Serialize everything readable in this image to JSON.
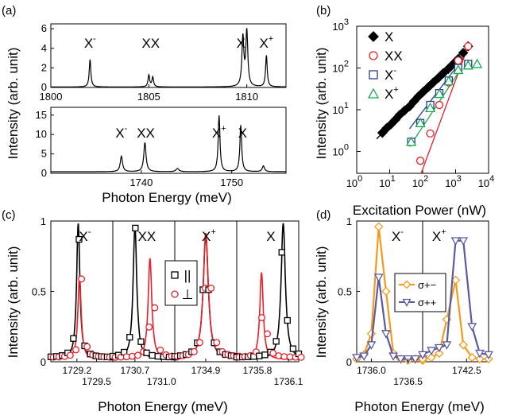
{
  "panels": {
    "a": {
      "label": "(a)"
    },
    "b": {
      "label": "(b)"
    },
    "c": {
      "label": "(c)"
    },
    "d": {
      "label": "(d)"
    }
  },
  "axis_titles": {
    "a_x": "Photon Energy (meV)",
    "a_y": "Intensity (arb. unit)",
    "b_x": "Excitation Power (nW)",
    "b_y": "Intensity (arb. unit)",
    "c_x": "Photon Energy (meV)",
    "c_y": "Intensity (arb. unit)",
    "d_x": "Photon Energy (meV)",
    "d_y": "Intensity (arb. unit)"
  },
  "colors": {
    "black": "#000000",
    "red": "#e8202a",
    "navy": "#2b3a8c",
    "green": "#1aa852",
    "orange": "#f39a1e",
    "purple": "#5a5aa0"
  },
  "chart_data": [
    {
      "panel": "a-top",
      "type": "line",
      "xlim": [
        1800,
        1812
      ],
      "ylim": [
        0,
        6.5
      ],
      "xticks": [
        1800,
        1805,
        1810
      ],
      "yticks": [
        0,
        2,
        4,
        6
      ],
      "annotations": [
        {
          "base": "X",
          "sup": "-",
          "x": 1802
        },
        {
          "base": "XX",
          "sup": "",
          "x": 1805.1
        },
        {
          "base": "X",
          "sup": "",
          "x": 1809.7
        },
        {
          "base": "X",
          "sup": "+",
          "x": 1811
        }
      ],
      "peaks": [
        {
          "x": 1802.0,
          "h": 2.8,
          "w": 0.05
        },
        {
          "x": 1805.0,
          "h": 1.2,
          "w": 0.05
        },
        {
          "x": 1805.2,
          "h": 1.0,
          "w": 0.05
        },
        {
          "x": 1809.8,
          "h": 5.0,
          "w": 0.06
        },
        {
          "x": 1810.0,
          "h": 5.6,
          "w": 0.06
        },
        {
          "x": 1811.0,
          "h": 3.2,
          "w": 0.05
        }
      ],
      "baseline": 0.05
    },
    {
      "panel": "a-bottom",
      "type": "line",
      "xlim": [
        1730,
        1756
      ],
      "ylim": [
        0,
        17
      ],
      "xticks": [
        1740,
        1750
      ],
      "yticks": [
        0,
        5,
        10,
        15
      ],
      "annotations": [
        {
          "base": "X",
          "sup": "-",
          "x": 1737.8
        },
        {
          "base": "XX",
          "sup": "",
          "x": 1740.5
        },
        {
          "base": "X",
          "sup": "+",
          "x": 1748.6
        },
        {
          "base": "X",
          "sup": "",
          "x": 1751.2
        }
      ],
      "peaks": [
        {
          "x": 1737.8,
          "h": 4.0,
          "w": 0.15
        },
        {
          "x": 1740.4,
          "h": 7.5,
          "w": 0.15
        },
        {
          "x": 1744.0,
          "h": 0.8,
          "w": 0.2
        },
        {
          "x": 1748.6,
          "h": 14.5,
          "w": 0.12
        },
        {
          "x": 1751.0,
          "h": 12.0,
          "w": 0.12
        },
        {
          "x": 1753.5,
          "h": 1.5,
          "w": 0.15
        }
      ],
      "baseline": 0.4
    },
    {
      "panel": "b",
      "type": "scatter",
      "xscale": "log",
      "yscale": "log",
      "xlim": [
        1,
        10000
      ],
      "ylim": [
        0.3,
        1000
      ],
      "xticks": [
        {
          "v": 1,
          "base": "10",
          "exp": "0"
        },
        {
          "v": 10,
          "base": "10",
          "exp": "1"
        },
        {
          "v": 100,
          "base": "10",
          "exp": "2"
        },
        {
          "v": 1000,
          "base": "10",
          "exp": "3"
        },
        {
          "v": 10000,
          "base": "10",
          "exp": "4"
        }
      ],
      "yticks": [
        {
          "v": 1,
          "base": "10",
          "exp": "0"
        },
        {
          "v": 10,
          "base": "10",
          "exp": "1"
        },
        {
          "v": 100,
          "base": "10",
          "exp": "2"
        },
        {
          "v": 1000,
          "base": "10",
          "exp": "3"
        }
      ],
      "legend": [
        {
          "base": "X",
          "sup": "",
          "marker": "diamond",
          "color": "#000000"
        },
        {
          "base": "XX",
          "sup": "",
          "marker": "circle",
          "color": "#e8202a"
        },
        {
          "base": "X",
          "sup": "-",
          "marker": "square",
          "color": "#2b3a8c"
        },
        {
          "base": "X",
          "sup": "+",
          "marker": "triangle",
          "color": "#1aa852"
        }
      ],
      "series": [
        {
          "marker": "diamond",
          "color": "#000000",
          "fill": true,
          "x": [
            6,
            8,
            11,
            15,
            20,
            28,
            40,
            55,
            75,
            105,
            150,
            210,
            300,
            420,
            600,
            850,
            1200,
            1700,
            2400
          ],
          "y": [
            2.8,
            3.6,
            4.5,
            5.8,
            7.5,
            9.5,
            12,
            16,
            21,
            27,
            35,
            45,
            58,
            75,
            95,
            125,
            165,
            230,
            330
          ]
        },
        {
          "marker": "circle",
          "color": "#e8202a",
          "fill": false,
          "x": [
            85,
            170,
            320,
            620,
            1200,
            2400
          ],
          "y": [
            0.6,
            2.7,
            13,
            45,
            150,
            330
          ]
        },
        {
          "marker": "square",
          "color": "#2b3a8c",
          "fill": false,
          "x": [
            45,
            85,
            170,
            320,
            620,
            1200,
            2400
          ],
          "y": [
            1.7,
            4.8,
            13,
            25,
            50,
            100,
            125
          ]
        },
        {
          "marker": "triangle",
          "color": "#1aa852",
          "fill": false,
          "x": [
            45,
            85,
            170,
            320,
            620,
            1200,
            2400,
            4500
          ],
          "y": [
            1.7,
            4.8,
            11,
            24,
            48,
            90,
            115,
            125
          ]
        }
      ],
      "fits": [
        {
          "color": "#000000",
          "x": [
            4,
            2400
          ],
          "y": [
            2.0,
            330
          ]
        },
        {
          "color": "#e8202a",
          "x": [
            90,
            2400
          ],
          "y": [
            0.3,
            330
          ]
        },
        {
          "color": "#2b3a8c",
          "x": [
            40,
            1100
          ],
          "y": [
            3.5,
            110
          ]
        },
        {
          "color": "#1aa852",
          "x": [
            40,
            1500
          ],
          "y": [
            1.3,
            100
          ]
        }
      ]
    },
    {
      "panel": "c",
      "type": "line",
      "ylim": [
        0,
        1
      ],
      "yticks": [
        {
          "v": 0,
          "label": "0"
        },
        {
          "v": 0.5,
          "label": "0.5"
        },
        {
          "v": 1,
          "label": "1"
        }
      ],
      "segments": [
        {
          "label_base": "X",
          "label_sup": "-",
          "xlim": [
            1728.8,
            1729.75
          ],
          "ticks": [
            1729.2,
            1729.5
          ],
          "black_peak": {
            "x": 1729.22,
            "h": 0.97,
            "w": 0.03
          },
          "red_peak": {
            "x": 1729.24,
            "h": 0.6,
            "w": 0.03
          }
        },
        {
          "label_base": "XX",
          "label_sup": "",
          "xlim": [
            1730.45,
            1731.15
          ],
          "ticks": [
            1730.7,
            1731.0
          ],
          "black_peak": {
            "x": 1730.7,
            "h": 0.95,
            "w": 0.025
          },
          "red_peak": {
            "x": 1730.87,
            "h": 0.72,
            "w": 0.025
          }
        },
        {
          "label_base": "X",
          "label_sup": "+",
          "xlim": [
            1734.75,
            1735.05
          ],
          "ticks": [
            1734.9
          ],
          "black_peak": {
            "x": 1734.9,
            "h": 0.88,
            "w": 0.015
          },
          "red_peak": {
            "x": 1734.9,
            "h": 0.9,
            "w": 0.015
          }
        },
        {
          "label_base": "X",
          "label_sup": "",
          "xlim": [
            1735.6,
            1736.2
          ],
          "ticks": [
            1735.8,
            1736.1
          ],
          "black_peak": {
            "x": 1736.05,
            "h": 0.97,
            "w": 0.025
          },
          "red_peak": {
            "x": 1735.84,
            "h": 0.62,
            "w": 0.02
          }
        }
      ],
      "legend": [
        {
          "symbol": "||",
          "marker": "square",
          "color": "#000000"
        },
        {
          "symbol": "⊥",
          "marker": "circle",
          "color": "#e8202a"
        }
      ]
    },
    {
      "panel": "d",
      "type": "line",
      "ylim": [
        0,
        1
      ],
      "yticks": [
        {
          "v": 0,
          "label": "0"
        },
        {
          "v": 0.5,
          "label": "0.5"
        },
        {
          "v": 1,
          "label": "1"
        }
      ],
      "segments": [
        {
          "label_base": "X",
          "label_sup": "-",
          "xlim": [
            1735.8,
            1736.7
          ],
          "ticks": [
            1736.0,
            1736.5
          ],
          "orange": {
            "x": [
              1735.8,
              1735.9,
              1736.0,
              1736.1,
              1736.2,
              1736.3,
              1736.4,
              1736.5,
              1736.6,
              1736.7
            ],
            "y": [
              0.02,
              0.05,
              0.2,
              0.96,
              0.5,
              0.06,
              0.02,
              0.01,
              0.02,
              0.01
            ]
          },
          "purple": {
            "x": [
              1735.8,
              1735.9,
              1736.0,
              1736.1,
              1736.2,
              1736.3,
              1736.4,
              1736.5,
              1736.6,
              1736.7
            ],
            "y": [
              0.03,
              0.04,
              0.12,
              0.6,
              0.2,
              0.04,
              0.02,
              0.02,
              0.02,
              0.02
            ]
          }
        },
        {
          "label_base": "X",
          "label_sup": "+",
          "xlim": [
            1742.1,
            1742.7
          ],
          "ticks": [
            1742.5
          ],
          "orange": {
            "x": [
              1742.1,
              1742.18,
              1742.25,
              1742.32,
              1742.4,
              1742.47,
              1742.55,
              1742.62,
              1742.7
            ],
            "y": [
              0.02,
              0.03,
              0.06,
              0.3,
              0.58,
              0.12,
              0.03,
              0.02,
              0.02
            ]
          },
          "purple": {
            "x": [
              1742.1,
              1742.18,
              1742.25,
              1742.32,
              1742.4,
              1742.47,
              1742.55,
              1742.62,
              1742.7
            ],
            "y": [
              0.05,
              0.08,
              0.1,
              0.12,
              0.86,
              0.86,
              0.25,
              0.06,
              0.05
            ]
          }
        }
      ],
      "legend": [
        {
          "label": "σ+−",
          "marker": "diamond",
          "color": "#f39a1e"
        },
        {
          "label": "σ++",
          "marker": "triangle-down",
          "color": "#5a5aa0"
        }
      ]
    }
  ]
}
